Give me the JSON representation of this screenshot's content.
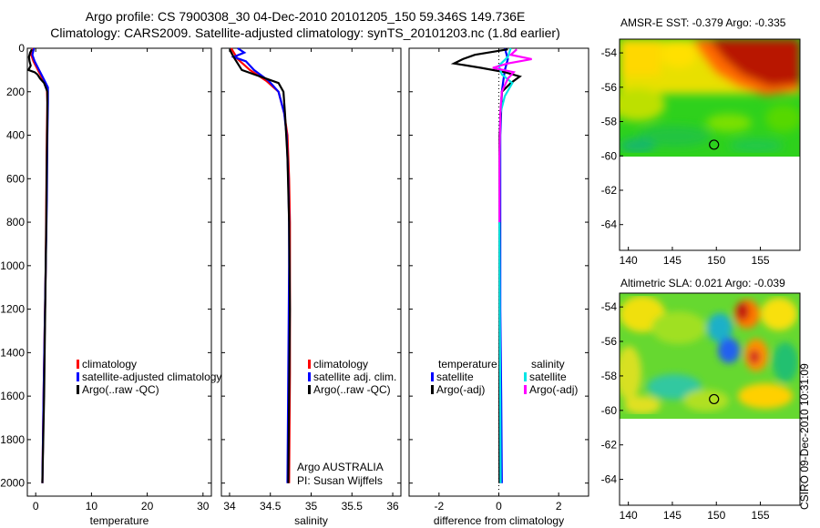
{
  "header": {
    "line1": "Argo profile: CS 7900308_30 04-Dec-2010 20101205_150 59.346S 149.736E",
    "line2": "Climatology: CARS2009. Satellite-adjusted climatology: synTS_20101203.nc (1.8d earlier)"
  },
  "colors": {
    "climatology": "#ff0000",
    "satellite": "#0000ff",
    "argo": "#000000",
    "argo_salinity": "#ff00ff",
    "satellite_salinity": "#00e5e5"
  },
  "chart_data": [
    {
      "type": "line",
      "id": "temperature",
      "xlabel": "temperature",
      "ylabel": "",
      "xlim": [
        -1.5,
        31.5
      ],
      "ylim": [
        2060,
        0
      ],
      "xticks": [
        0,
        10,
        20,
        30
      ],
      "yticks": [
        0,
        200,
        400,
        600,
        800,
        1000,
        1200,
        1400,
        1600,
        1800,
        2000
      ],
      "legend": [
        "climatology",
        "satellite-adjusted climatology",
        "Argo(..raw -QC)"
      ],
      "series": [
        {
          "name": "climatology",
          "color": "#ff0000",
          "depth": [
            0,
            30,
            60,
            100,
            150,
            180,
            250,
            400,
            700,
            1000,
            1300,
            1600,
            2000
          ],
          "values": [
            -0.5,
            -0.8,
            -0.4,
            0.4,
            1.4,
            2.0,
            2.1,
            2.0,
            1.9,
            1.8,
            1.6,
            1.4,
            1.2
          ]
        },
        {
          "name": "satellite-adjusted climatology",
          "color": "#0000ff",
          "depth": [
            0,
            30,
            60,
            100,
            150,
            180,
            250,
            400,
            700,
            1000,
            1300,
            1600,
            2000
          ],
          "values": [
            -0.3,
            -0.6,
            -0.2,
            0.6,
            1.6,
            2.2,
            2.2,
            2.1,
            2.0,
            1.8,
            1.6,
            1.4,
            1.2
          ]
        },
        {
          "name": "Argo(..raw -QC)",
          "color": "#000000",
          "depth": [
            5,
            20,
            40,
            60,
            80,
            100,
            110,
            120,
            140,
            160,
            200,
            300,
            500,
            800,
            1200,
            1600,
            2000
          ],
          "values": [
            -0.7,
            -1.0,
            -1.2,
            -1.1,
            -0.9,
            -1.3,
            -0.2,
            0.3,
            0.8,
            1.5,
            2.1,
            2.1,
            2.0,
            1.9,
            1.7,
            1.5,
            1.2
          ]
        }
      ]
    },
    {
      "type": "line",
      "id": "salinity",
      "xlabel": "salinity",
      "ylabel": "",
      "xlim": [
        33.9,
        36.1
      ],
      "ylim": [
        2060,
        0
      ],
      "xticks": [
        34,
        34.5,
        35,
        35.5,
        36
      ],
      "xtick_labels": [
        "34",
        "34.5",
        "35",
        "35.5",
        "36"
      ],
      "legend": [
        "climatology",
        "satellite adj. clim.",
        "Argo(..raw -QC)"
      ],
      "series": [
        {
          "name": "climatology",
          "color": "#ff0000",
          "depth": [
            0,
            50,
            100,
            150,
            200,
            300,
            400,
            600,
            800,
            1000,
            1500,
            2000
          ],
          "values": [
            34.02,
            34.1,
            34.25,
            34.45,
            34.6,
            34.67,
            34.71,
            34.73,
            34.74,
            34.74,
            34.74,
            34.73
          ]
        },
        {
          "name": "satellite adj. clim.",
          "color": "#0000ff",
          "depth": [
            0,
            20,
            40,
            60,
            100,
            150,
            200,
            300,
            400,
            600,
            800,
            1000,
            1500,
            2000
          ],
          "values": [
            34.1,
            34.18,
            34.05,
            34.2,
            34.3,
            34.48,
            34.6,
            34.67,
            34.7,
            34.72,
            34.73,
            34.73,
            34.72,
            34.71
          ]
        },
        {
          "name": "Argo(..raw -QC)",
          "color": "#000000",
          "depth": [
            5,
            40,
            100,
            160,
            200,
            300,
            500,
            800,
            1200,
            1600,
            2000
          ],
          "values": [
            34.0,
            34.05,
            34.15,
            34.6,
            34.66,
            34.68,
            34.71,
            34.73,
            34.74,
            34.73,
            34.72
          ]
        }
      ],
      "annotations": [
        "Argo AUSTRALIA",
        "PI: Susan Wijffels"
      ]
    },
    {
      "type": "line",
      "id": "difference",
      "xlabel": "difference from climatology",
      "ylabel": "",
      "xlim": [
        -3.0,
        3.0
      ],
      "ylim": [
        2060,
        0
      ],
      "xticks": [
        -2,
        0,
        2
      ],
      "legend_title_left": "temperature",
      "legend_title_right": "salinity",
      "legend": [
        "satellite",
        "Argo(-adj)",
        "satellite",
        "Argo(-adj)"
      ],
      "series": [
        {
          "name": "temperature satellite",
          "color": "#0000ff",
          "depth": [
            0,
            50,
            100,
            150,
            200,
            400,
            800,
            1200,
            1600,
            2000
          ],
          "values": [
            0.2,
            0.3,
            0.2,
            0.15,
            0.1,
            0.05,
            0.05,
            0.05,
            0.08,
            0.1
          ]
        },
        {
          "name": "temperature Argo(-adj)",
          "color": "#000000",
          "depth": [
            5,
            30,
            50,
            70,
            90,
            110,
            130,
            160,
            200,
            400,
            800,
            1200,
            1600,
            2000
          ],
          "values": [
            0.3,
            -0.8,
            -1.2,
            -1.5,
            -0.6,
            0.2,
            0.7,
            0.4,
            0.1,
            0.02,
            0.02,
            0.02,
            0.02,
            0.02
          ]
        },
        {
          "name": "salinity satellite",
          "color": "#00e5e5",
          "depth": [
            0,
            40,
            80,
            120,
            160,
            220,
            300,
            500,
            800,
            1200,
            1600,
            2000
          ],
          "values": [
            0.4,
            0.3,
            0.0,
            0.1,
            0.45,
            0.2,
            0.05,
            0.03,
            0.02,
            0.03,
            0.05,
            0.06
          ]
        },
        {
          "name": "salinity Argo(-adj)",
          "color": "#ff00ff",
          "depth": [
            5,
            30,
            50,
            70,
            90,
            110,
            140,
            170,
            200,
            300,
            500,
            800
          ],
          "values": [
            0.6,
            0.4,
            1.1,
            0.3,
            -0.2,
            0.5,
            0.3,
            0.2,
            0.1,
            0.05,
            0.02,
            0.02
          ]
        }
      ]
    },
    {
      "type": "heatmap",
      "id": "sst-map",
      "title": "AMSR-E SST: -0.379 Argo: -0.335",
      "xlim": [
        139.0,
        159.5
      ],
      "ylim": [
        -65.5,
        -53.2
      ],
      "xticks": [
        140,
        145,
        150,
        155
      ],
      "yticks": [
        -54,
        -56,
        -58,
        -60,
        -62,
        -64
      ],
      "data_lat_range": [
        -60.0,
        -53.2
      ],
      "profile_marker": {
        "lon": 149.736,
        "lat": -59.346
      }
    },
    {
      "type": "heatmap",
      "id": "sla-map",
      "title": "Altimetric SLA: 0.021 Argo: -0.039",
      "xlim": [
        139.0,
        159.5
      ],
      "ylim": [
        -65.5,
        -53.2
      ],
      "xticks": [
        140,
        145,
        150,
        155
      ],
      "yticks": [
        -54,
        -56,
        -58,
        -60,
        -62,
        -64
      ],
      "data_lat_range": [
        -60.0,
        -53.2
      ],
      "profile_marker": {
        "lon": 149.736,
        "lat": -59.346
      }
    }
  ],
  "footer": {
    "stamp": "CSIRO 09-Dec-2010 10:31:09"
  }
}
